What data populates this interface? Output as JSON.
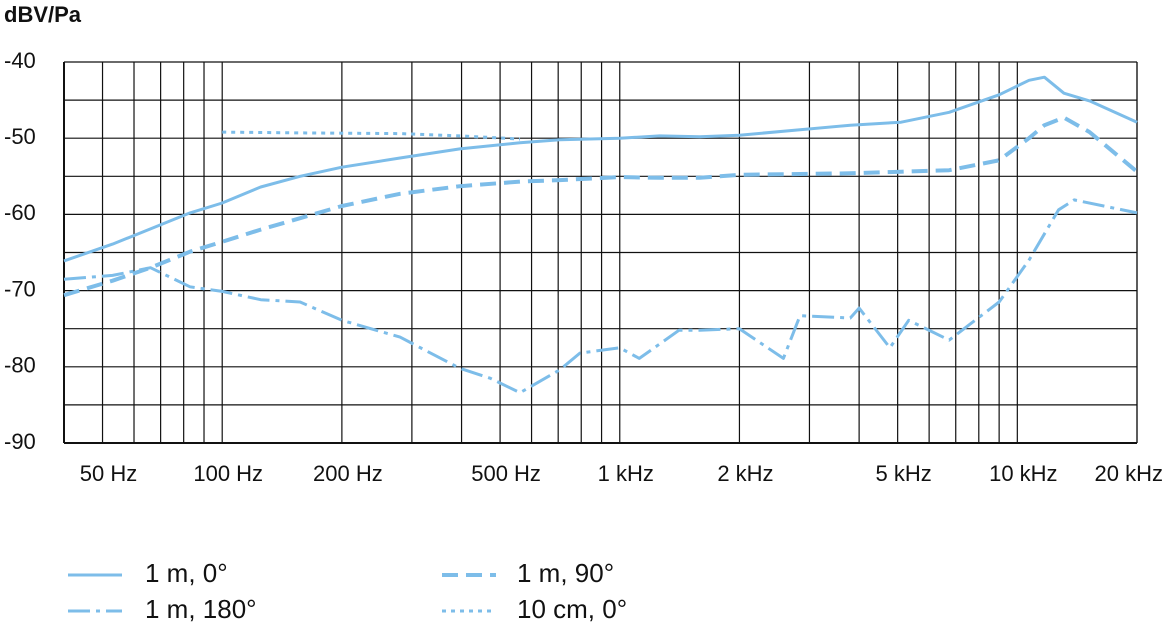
{
  "chart_data": {
    "type": "line",
    "ylabel": "dBV/Pa",
    "xlog": true,
    "grid": true,
    "xlim": [
      40,
      20000
    ],
    "ylim": [
      -90,
      -40
    ],
    "yticks": [
      -90,
      -80,
      -70,
      -60,
      -50,
      -40
    ],
    "ygrid": [
      -85,
      -75,
      -65,
      -55,
      -45
    ],
    "xticks": [
      {
        "value": 50,
        "label": "50 Hz"
      },
      {
        "value": 100,
        "label": "100 Hz"
      },
      {
        "value": 200,
        "label": "200 Hz"
      },
      {
        "value": 500,
        "label": "500 Hz"
      },
      {
        "value": 1000,
        "label": "1 kHz"
      },
      {
        "value": 2000,
        "label": "2 kHz"
      },
      {
        "value": 5000,
        "label": "5 kHz"
      },
      {
        "value": 10000,
        "label": "10 kHz"
      },
      {
        "value": 20000,
        "label": "20 kHz"
      }
    ],
    "xgrid": [
      60,
      70,
      80,
      90,
      300,
      400,
      600,
      700,
      800,
      900,
      3000,
      4000,
      6000,
      7000,
      8000,
      9000
    ],
    "series": [
      {
        "name": "1 m, 0°",
        "color": "#7dbde9",
        "linestyle": "solid",
        "x": [
          40,
          53,
          66,
          83,
          100,
          125,
          157,
          200,
          280,
          396,
          561,
          707,
          1000,
          1260,
          1590,
          2000,
          2840,
          3800,
          5100,
          6740,
          9000,
          10700,
          11700,
          13100,
          15200,
          20000
        ],
        "values": [
          -66.1,
          -63.9,
          -61.9,
          -59.8,
          -58.5,
          -56.4,
          -55,
          -53.8,
          -52.6,
          -51.4,
          -50.6,
          -50.2,
          -50,
          -49.7,
          -49.8,
          -49.6,
          -48.9,
          -48.3,
          -47.9,
          -46.6,
          -44.3,
          -42.4,
          -42,
          -44.1,
          -45.1,
          -47.9
        ]
      },
      {
        "name": "1 m, 90°",
        "color": "#7dbde9",
        "linestyle": "dashed",
        "x": [
          40,
          53,
          66,
          83,
          100,
          125,
          157,
          200,
          280,
          396,
          561,
          707,
          1000,
          1260,
          1590,
          2000,
          2840,
          3800,
          5100,
          6740,
          9000,
          10700,
          11700,
          13100,
          15200,
          20000
        ],
        "values": [
          -70.6,
          -68.7,
          -67,
          -64.9,
          -63.6,
          -62,
          -60.5,
          -58.9,
          -57.3,
          -56.3,
          -55.7,
          -55.5,
          -55.1,
          -55.2,
          -55.2,
          -54.8,
          -54.7,
          -54.6,
          -54.4,
          -54.2,
          -52.9,
          -50,
          -48.3,
          -47.3,
          -49.2,
          -54.4
        ]
      },
      {
        "name": "1 m, 180°",
        "color": "#7dbde9",
        "linestyle": "dashdot",
        "x": [
          40,
          53,
          66,
          83,
          100,
          125,
          157,
          200,
          280,
          396,
          472,
          561,
          707,
          794,
          1000,
          1120,
          1410,
          1590,
          2000,
          2580,
          2840,
          3800,
          4000,
          4780,
          5330,
          6740,
          9000,
          10700,
          12700,
          13900,
          20000
        ],
        "values": [
          -68.5,
          -68,
          -67,
          -69.5,
          -70.1,
          -71.2,
          -71.5,
          -73.9,
          -76.1,
          -80.2,
          -81.5,
          -83.4,
          -80.4,
          -78.2,
          -77.5,
          -78.9,
          -75.2,
          -75.2,
          -75,
          -78.9,
          -73.3,
          -73.6,
          -72.3,
          -77.5,
          -73.9,
          -76.5,
          -71.5,
          -66,
          -59.4,
          -58.1,
          -59.8
        ]
      },
      {
        "name": "10 cm, 0°",
        "color": "#7dbde9",
        "linestyle": "dotted",
        "x": [
          100,
          157,
          280,
          396,
          561
        ],
        "values": [
          -49.2,
          -49.3,
          -49.4,
          -49.7,
          -50.1
        ]
      }
    ]
  }
}
